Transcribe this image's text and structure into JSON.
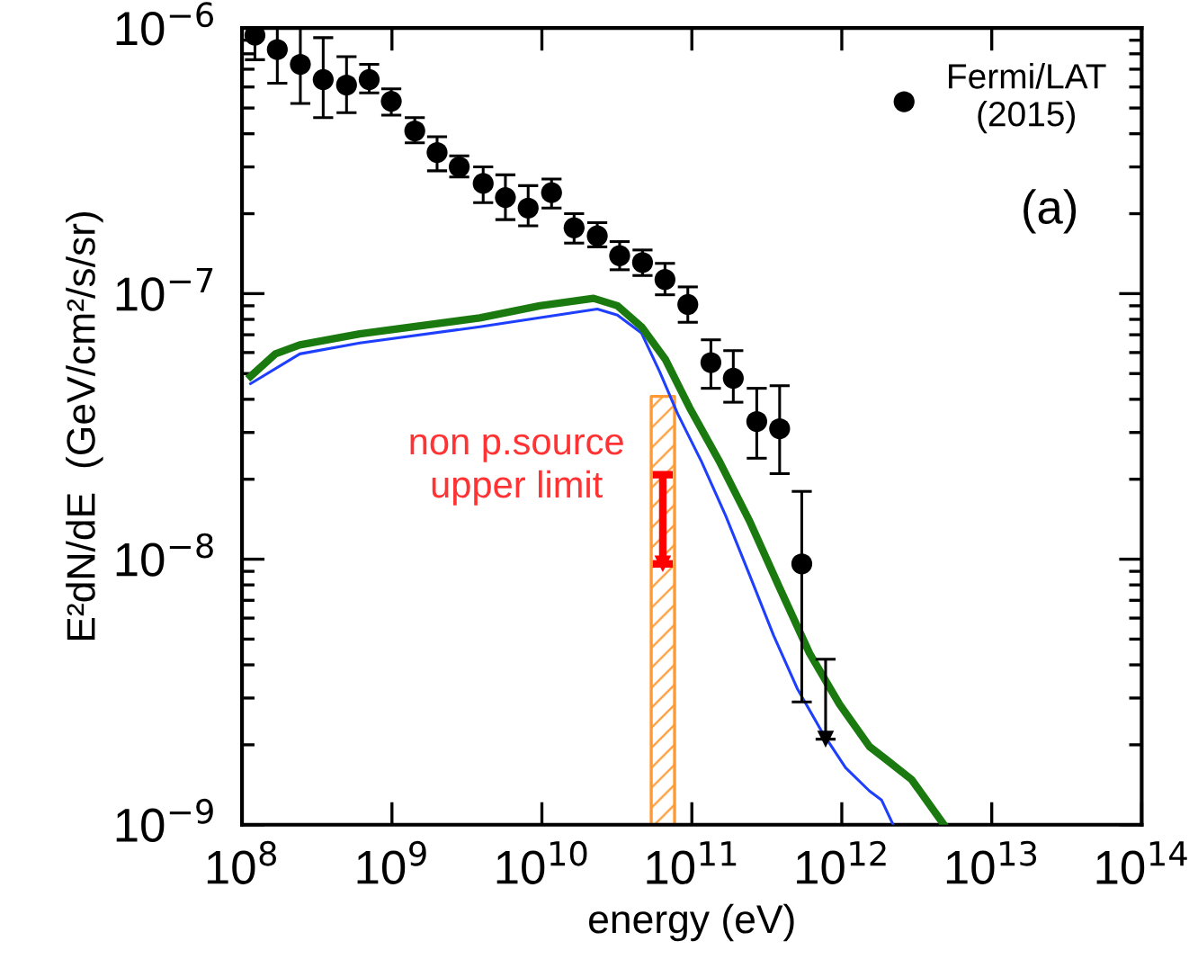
{
  "chart_data": {
    "type": "scatter",
    "xlabel": "energy (eV)",
    "ylabel": "E²dN/dE  (GeV/cm²/s/sr)",
    "log": "xy",
    "grid": false,
    "legend": "top right",
    "xlim": [
      100000000.0,
      100000000000000.0
    ],
    "ylim": [
      1e-09,
      1e-06
    ],
    "xticks": [
      {
        "value": 100000000.0,
        "label": "10$^{8}$"
      },
      {
        "value": 1000000000.0,
        "label": "10$^{9}$"
      },
      {
        "value": 10000000000.0,
        "label": "10$^{10}$"
      },
      {
        "value": 100000000000.0,
        "label": "10$^{11}$"
      },
      {
        "value": 1000000000000.0,
        "label": "10$^{12}$"
      },
      {
        "value": 10000000000000.0,
        "label": "10$^{13}$"
      },
      {
        "value": 100000000000000.0,
        "label": "10$^{14}$"
      }
    ],
    "yticks": [
      {
        "value": 1e-09,
        "label": "10$^{−9}$"
      },
      {
        "value": 1e-08,
        "label": "10$^{−8}$"
      },
      {
        "value": 1e-07,
        "label": "10$^{−7}$"
      },
      {
        "value": 1e-06,
        "label": "10$^{−6}$"
      }
    ],
    "annotations": [
      "(a)",
      "non p.source\nupper limit"
    ],
    "series": [
      {
        "type": "area",
        "color": "#ff9933",
        "x": [
          53600000000.0,
          76700000000.0
        ],
        "values": [
          4.1e-08,
          4.1e-08
        ]
      },
      {
        "type": "line",
        "color": "#1f3fff",
        "x": [
          114000000.0,
          243000000.0,
          610000000.0,
          3850000000.0,
          23400000000.0,
          31900000000.0,
          46200000000.0,
          61000000000.0,
          80400000000.0,
          116000000000.0,
          168000000000.0,
          243000000000.0,
          351000000000.0,
          507000000000.0,
          733000000000.0,
          1060000000000.0,
          1530000000000.0,
          1840000000000.0,
          2200000000000.0
        ],
        "values": [
          4.58e-08,
          5.93e-08,
          6.52e-08,
          7.5e-08,
          8.75e-08,
          8.3e-08,
          7.1e-08,
          5.08e-08,
          3.53e-08,
          2.33e-08,
          1.46e-08,
          8.7e-09,
          5.16e-09,
          3.24e-09,
          2.25e-09,
          1.64e-09,
          1.34e-09,
          1.24e-09,
          1e-09
        ]
      },
      {
        "type": "line",
        "color": "#1a7a0f",
        "x": [
          114000000.0,
          167000000.0,
          243000000.0,
          610000000.0,
          3850000000.0,
          9700000000.0,
          22100000000.0,
          31900000000.0,
          46200000000.0,
          66800000000.0,
          96600000000.0,
          153000000000.0,
          243000000000.0,
          385000000000.0,
          610000000000.0,
          966000000000.0,
          1530000000000.0,
          1930000000000.0,
          2920000000000.0,
          4800000000000.0
        ],
        "values": [
          4.88e-08,
          5.93e-08,
          6.41e-08,
          7.05e-08,
          8.1e-08,
          9e-08,
          9.6e-08,
          9e-08,
          7.5e-08,
          5.64e-08,
          3.72e-08,
          2.33e-08,
          1.39e-08,
          7.8e-09,
          4.42e-09,
          2.84e-09,
          1.97e-09,
          1.78e-09,
          1.48e-09,
          1e-09
        ]
      },
      {
        "name": "Fermi/LAT\n(2015)",
        "color": "#000000",
        "marker": "circle",
        "x": [
          122000000.0,
          172000000.0,
          245000000.0,
          348000000.0,
          498000000.0,
          705000000.0,
          990000000.0,
          1420000000.0,
          2000000000.0,
          2810000000.0,
          4060000000.0,
          5710000000.0,
          8100000000.0,
          11600000000.0,
          16400000000.0,
          23400000000.0,
          33000000000.0,
          46900000000.0,
          66200000000.0,
          94000000000.0,
          134000000000.0,
          189000000000.0,
          271000000000.0,
          385000000000.0,
          541000000000.0
        ],
        "values": [
          9.4e-07,
          8.3e-07,
          7.3e-07,
          6.4e-07,
          6.1e-07,
          6.4e-07,
          5.3e-07,
          4.1e-07,
          3.4e-07,
          3e-07,
          2.6e-07,
          2.3e-07,
          2.1e-07,
          2.4e-07,
          1.77e-07,
          1.65e-07,
          1.39e-07,
          1.31e-07,
          1.13e-07,
          9.1e-08,
          5.5e-08,
          4.8e-08,
          3.3e-08,
          3.1e-08,
          9.6e-09
        ],
        "errors": [
          [
            7.6e-07,
            1e-06
          ],
          [
            6.2e-07,
            1e-06
          ],
          [
            5.2e-07,
            1e-06
          ],
          [
            4.6e-07,
            9.2e-07
          ],
          [
            4.8e-07,
            7.8e-07
          ],
          [
            5.7e-07,
            7.3e-07
          ],
          [
            4.7e-07,
            5.9e-07
          ],
          [
            3.7e-07,
            4.6e-07
          ],
          [
            2.9e-07,
            3.9e-07
          ],
          [
            2.75e-07,
            3.3e-07
          ],
          [
            2.2e-07,
            3e-07
          ],
          [
            1.9e-07,
            2.8e-07
          ],
          [
            1.8e-07,
            2.55e-07
          ],
          [
            2.1e-07,
            2.7e-07
          ],
          [
            1.55e-07,
            2e-07
          ],
          [
            1.5e-07,
            1.85e-07
          ],
          [
            1.23e-07,
            1.57e-07
          ],
          [
            1.17e-07,
            1.46e-07
          ],
          [
            9.9e-08,
            1.3e-07
          ],
          [
            7.8e-08,
            1.06e-07
          ],
          [
            4.4e-08,
            6.7e-08
          ],
          [
            3.9e-08,
            6.1e-08
          ],
          [
            2.4e-08,
            4.4e-08
          ],
          [
            2.1e-08,
            4.5e-08
          ],
          [
            2.9e-09,
            1.8e-08
          ]
        ]
      },
      {
        "color": "#000000",
        "marker": "triangle",
        "x": [
          780000000000.0
        ],
        "values": [
          2.1e-09
        ],
        "errors": [
          [
            2.1e-09,
            4.2e-09
          ]
        ]
      },
      {
        "color": "#ff0000",
        "marker": "triangle",
        "x": [
          64000000000.0
        ],
        "values": [
          9.6e-09
        ],
        "errors": [
          [
            9.6e-09,
            2.08e-08
          ]
        ]
      }
    ]
  }
}
